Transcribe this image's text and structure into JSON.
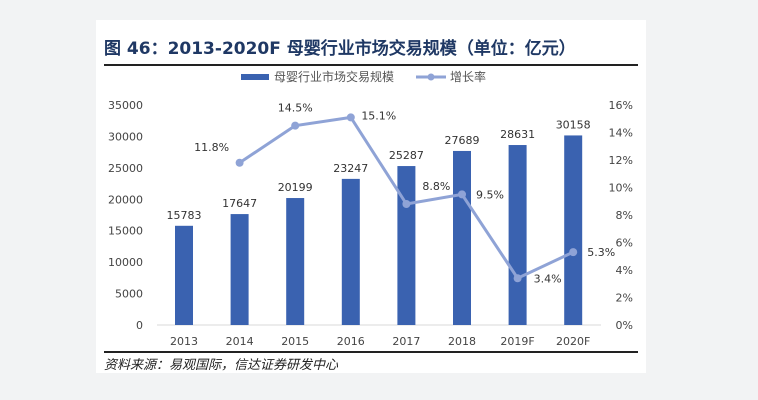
{
  "chart_data": {
    "type": "bar",
    "title": "图 46：2013-2020F 母婴行业市场交易规模（单位：亿元）",
    "categories": [
      "2013",
      "2014",
      "2015",
      "2016",
      "2017",
      "2018",
      "2019F",
      "2020F"
    ],
    "series": [
      {
        "name": "母婴行业市场交易规模",
        "type": "bar",
        "axis": "left",
        "color": "#3a62b0",
        "values": [
          15783,
          17647,
          20199,
          23247,
          25287,
          27689,
          28631,
          30158
        ]
      },
      {
        "name": "增长率",
        "type": "line",
        "axis": "right",
        "color": "#8fa3d6",
        "values": [
          null,
          11.8,
          14.5,
          15.1,
          8.8,
          9.5,
          3.4,
          5.3
        ],
        "labels": [
          "",
          "11.8%",
          "14.5%",
          "15.1%",
          "8.8%",
          "9.5%",
          "3.4%",
          "5.3%"
        ]
      }
    ],
    "ylim_left": [
      0,
      35000
    ],
    "yticks_left": [
      "0",
      "5000",
      "10000",
      "15000",
      "20000",
      "25000",
      "30000",
      "35000"
    ],
    "ylim_right": [
      0,
      16
    ],
    "yticks_right": [
      "0%",
      "2%",
      "4%",
      "6%",
      "8%",
      "10%",
      "12%",
      "14%",
      "16%"
    ],
    "legend": "top",
    "grid": false
  },
  "source": "资料来源：易观国际，信达证券研发中心"
}
